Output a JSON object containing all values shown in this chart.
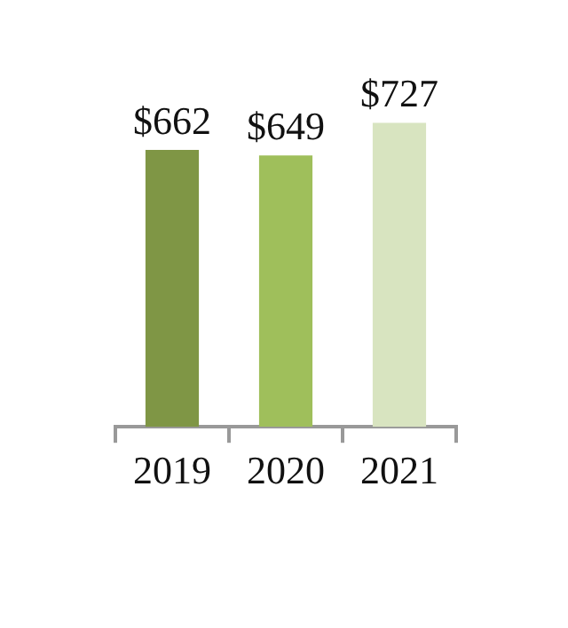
{
  "chart_data": {
    "type": "bar",
    "categories": [
      "2019",
      "2020",
      "2021"
    ],
    "values": [
      662,
      649,
      727
    ],
    "colors": [
      "#7f9645",
      "#9fbf5b",
      "#d8e4c0"
    ],
    "value_labels": [
      "$662",
      "$649",
      "$727"
    ],
    "grid": false,
    "legend": false
  }
}
